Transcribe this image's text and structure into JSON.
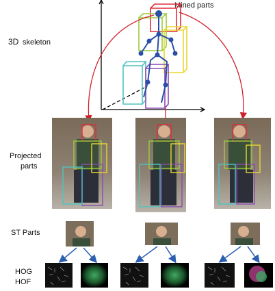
{
  "labels": {
    "mined_parts": "Mined parts",
    "skeleton_3d": "3D",
    "skeleton_word": "skeleton",
    "projected_line1": "Projected",
    "projected_line2": "parts",
    "st_parts": "ST Parts",
    "hog": "HOG",
    "hof": "HOF"
  }
}
